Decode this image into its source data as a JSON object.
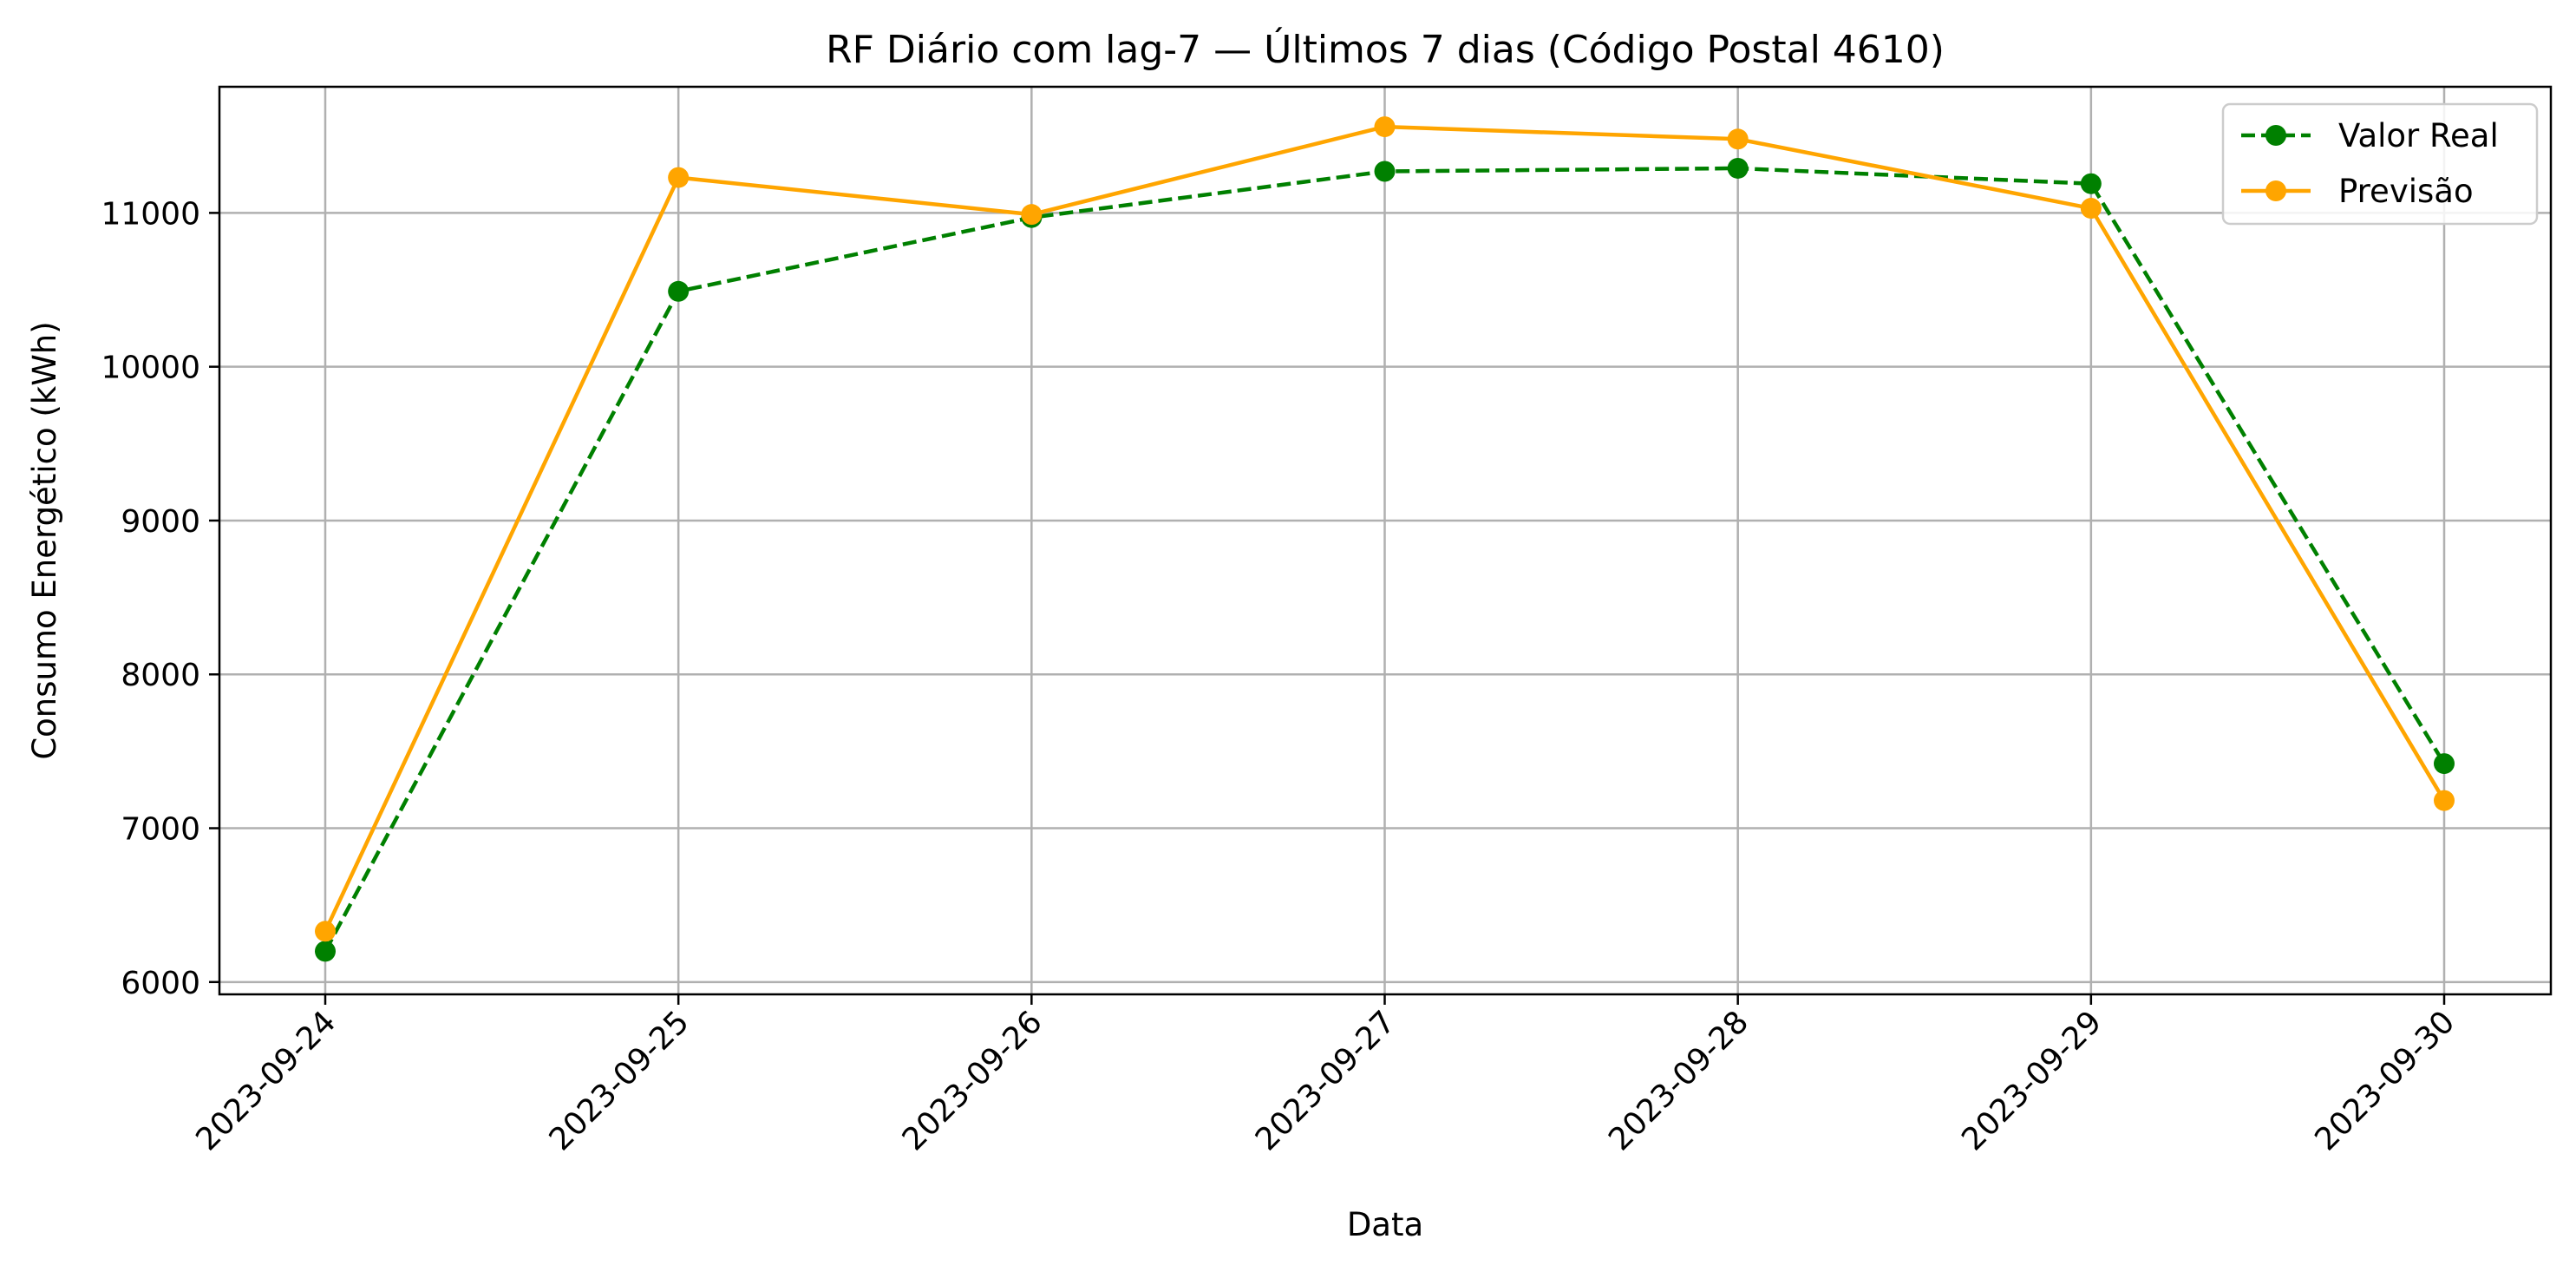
{
  "chart_data": {
    "type": "line",
    "title": "RF Diário com lag-7 — Últimos 7 dias (Código Postal 4610)",
    "xlabel": "Data",
    "ylabel": "Consumo Energético (kWh)",
    "categories": [
      "2023-09-24",
      "2023-09-25",
      "2023-09-26",
      "2023-09-27",
      "2023-09-28",
      "2023-09-29",
      "2023-09-30"
    ],
    "series": [
      {
        "name": "Valor Real",
        "values": [
          6200,
          10490,
          10970,
          11270,
          11290,
          11190,
          7420
        ],
        "color": "#008000",
        "line_style": "dashed",
        "marker": "circle"
      },
      {
        "name": "Previsão",
        "values": [
          6330,
          11230,
          10990,
          11560,
          11480,
          11030,
          7180
        ],
        "color": "#ffa500",
        "line_style": "solid",
        "marker": "circle"
      }
    ],
    "ylim": [
      5920,
      11820
    ],
    "yticks": [
      6000,
      7000,
      8000,
      9000,
      10000,
      11000
    ],
    "grid": true,
    "legend_position": "top-right"
  }
}
